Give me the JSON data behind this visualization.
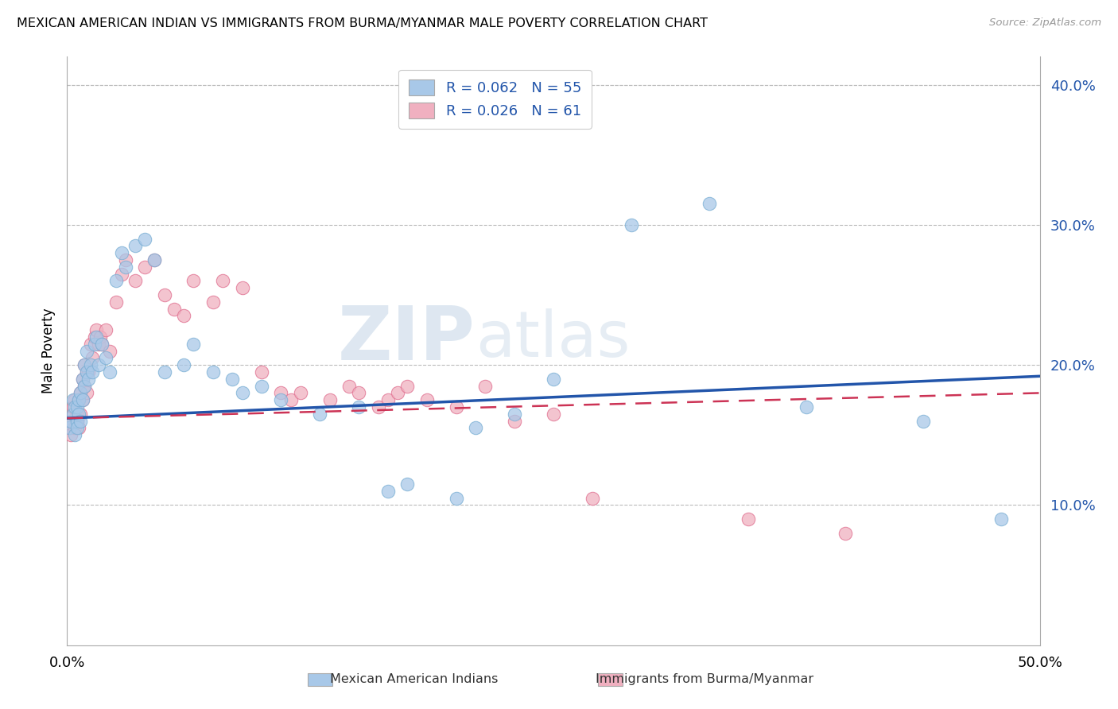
{
  "title": "MEXICAN AMERICAN INDIAN VS IMMIGRANTS FROM BURMA/MYANMAR MALE POVERTY CORRELATION CHART",
  "source": "Source: ZipAtlas.com",
  "ylabel": "Male Poverty",
  "xlim": [
    0.0,
    0.5
  ],
  "ylim": [
    0.0,
    0.42
  ],
  "yticks": [
    0.0,
    0.1,
    0.2,
    0.3,
    0.4
  ],
  "ytick_labels": [
    "",
    "10.0%",
    "20.0%",
    "30.0%",
    "40.0%"
  ],
  "xtick_left": "0.0%",
  "xtick_right": "50.0%",
  "legend1_label": "R = 0.062   N = 55",
  "legend2_label": "R = 0.026   N = 61",
  "watermark_zip": "ZIP",
  "watermark_atlas": "atlas",
  "blue_color": "#a8c8e8",
  "blue_edge_color": "#7aafd4",
  "blue_line_color": "#2255aa",
  "pink_color": "#f0b0c0",
  "pink_edge_color": "#e07090",
  "pink_line_color": "#cc3355",
  "blue_x": [
    0.001,
    0.002,
    0.003,
    0.003,
    0.004,
    0.004,
    0.005,
    0.005,
    0.005,
    0.006,
    0.006,
    0.007,
    0.007,
    0.008,
    0.008,
    0.009,
    0.009,
    0.01,
    0.01,
    0.011,
    0.012,
    0.013,
    0.014,
    0.015,
    0.016,
    0.018,
    0.02,
    0.022,
    0.025,
    0.028,
    0.03,
    0.035,
    0.04,
    0.045,
    0.05,
    0.06,
    0.065,
    0.075,
    0.085,
    0.09,
    0.1,
    0.11,
    0.13,
    0.15,
    0.165,
    0.175,
    0.2,
    0.21,
    0.23,
    0.25,
    0.29,
    0.33,
    0.38,
    0.44,
    0.48
  ],
  "blue_y": [
    0.155,
    0.16,
    0.165,
    0.175,
    0.15,
    0.17,
    0.16,
    0.155,
    0.17,
    0.165,
    0.175,
    0.16,
    0.18,
    0.19,
    0.175,
    0.2,
    0.185,
    0.195,
    0.21,
    0.19,
    0.2,
    0.195,
    0.215,
    0.22,
    0.2,
    0.215,
    0.205,
    0.195,
    0.26,
    0.28,
    0.27,
    0.285,
    0.29,
    0.275,
    0.195,
    0.2,
    0.215,
    0.195,
    0.19,
    0.18,
    0.185,
    0.175,
    0.165,
    0.17,
    0.11,
    0.115,
    0.105,
    0.155,
    0.165,
    0.19,
    0.3,
    0.315,
    0.17,
    0.16,
    0.09
  ],
  "pink_x": [
    0.001,
    0.002,
    0.002,
    0.003,
    0.003,
    0.004,
    0.004,
    0.005,
    0.005,
    0.006,
    0.006,
    0.007,
    0.007,
    0.008,
    0.008,
    0.009,
    0.009,
    0.01,
    0.01,
    0.011,
    0.012,
    0.013,
    0.014,
    0.015,
    0.016,
    0.017,
    0.018,
    0.02,
    0.022,
    0.025,
    0.028,
    0.03,
    0.035,
    0.04,
    0.045,
    0.05,
    0.055,
    0.06,
    0.065,
    0.075,
    0.08,
    0.09,
    0.1,
    0.11,
    0.115,
    0.12,
    0.135,
    0.145,
    0.15,
    0.16,
    0.165,
    0.17,
    0.175,
    0.185,
    0.2,
    0.215,
    0.23,
    0.25,
    0.27,
    0.35,
    0.4
  ],
  "pink_y": [
    0.155,
    0.16,
    0.15,
    0.165,
    0.17,
    0.155,
    0.175,
    0.165,
    0.16,
    0.175,
    0.155,
    0.165,
    0.18,
    0.175,
    0.19,
    0.185,
    0.2,
    0.195,
    0.18,
    0.195,
    0.215,
    0.205,
    0.22,
    0.225,
    0.215,
    0.22,
    0.215,
    0.225,
    0.21,
    0.245,
    0.265,
    0.275,
    0.26,
    0.27,
    0.275,
    0.25,
    0.24,
    0.235,
    0.26,
    0.245,
    0.26,
    0.255,
    0.195,
    0.18,
    0.175,
    0.18,
    0.175,
    0.185,
    0.18,
    0.17,
    0.175,
    0.18,
    0.185,
    0.175,
    0.17,
    0.185,
    0.16,
    0.165,
    0.105,
    0.09,
    0.08
  ],
  "blue_line_x0": 0.0,
  "blue_line_y0": 0.162,
  "blue_line_x1": 0.5,
  "blue_line_y1": 0.192,
  "pink_line_x0": 0.0,
  "pink_line_y0": 0.162,
  "pink_line_x1": 0.5,
  "pink_line_y1": 0.18
}
